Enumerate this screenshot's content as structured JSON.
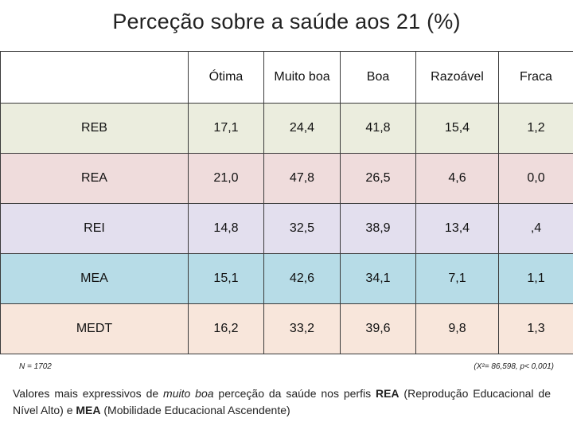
{
  "title": "Perceção sobre a saúde aos 21 (%)",
  "table": {
    "columns": [
      "",
      "Ótima",
      "Muito boa",
      "Boa",
      "Razoável",
      "Fraca"
    ],
    "rows": [
      {
        "label": "REB",
        "values": [
          "17,1",
          "24,4",
          "41,8",
          "15,4",
          "1,2"
        ],
        "bold": [
          false,
          false,
          true,
          false,
          true
        ],
        "color": "#ebedde"
      },
      {
        "label": "REA",
        "values": [
          "21,0",
          "47,8",
          "26,5",
          "4,6",
          "0,0"
        ],
        "bold": [
          true,
          true,
          false,
          false,
          false
        ],
        "color": "#efdcdc"
      },
      {
        "label": "REI",
        "values": [
          "14,8",
          "32,5",
          "38,9",
          "13,4",
          ",4"
        ],
        "bold": [
          false,
          false,
          true,
          false,
          false
        ],
        "color": "#e3dfee"
      },
      {
        "label": "MEA",
        "values": [
          "15,1",
          "42,6",
          "34,1",
          "7,1",
          "1,1"
        ],
        "bold": [
          false,
          true,
          false,
          false,
          false
        ],
        "color": "#b7dce7"
      },
      {
        "label": "MEDT",
        "values": [
          "16,2",
          "33,2",
          "39,6",
          "9,8",
          "1,3"
        ],
        "bold": [
          false,
          false,
          true,
          false,
          false
        ],
        "color": "#f8e6db"
      }
    ]
  },
  "note_left": "N = 1702",
  "note_right": "(X²= 86,598, p< 0,001)",
  "caption": {
    "part1": "Valores mais expressivos de ",
    "emph": "muito boa",
    "part2": " perceção da saúde nos perfis ",
    "strong1": "REA",
    "part3": " (Reprodução Educacional de Nível Alto) e ",
    "strong2": "MEA",
    "part4": " (Mobilidade Educacional Ascendente)"
  }
}
